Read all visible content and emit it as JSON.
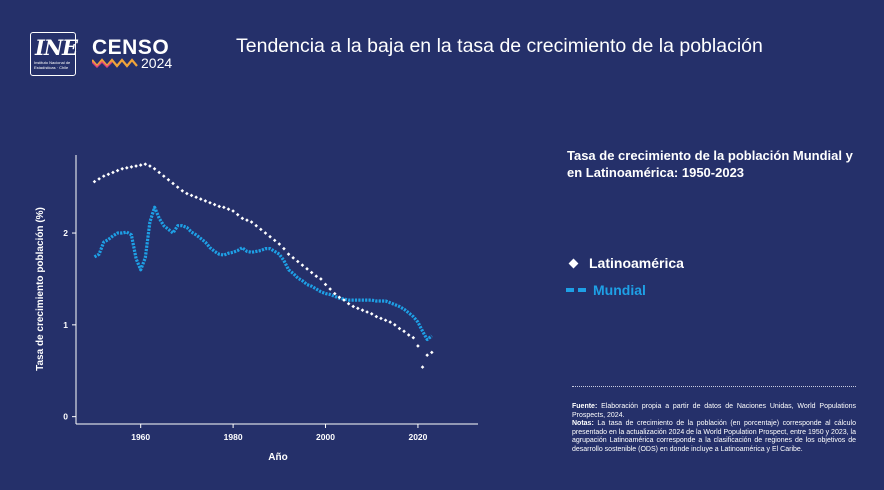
{
  "header": {
    "ine_logo_text": "INE",
    "ine_subtext": "Instituto Nacional de Estadísticas · Chile",
    "censo_text": "CENSO",
    "censo_year": "2024",
    "title": "Tendencia a la baja en la tasa de crecimiento de la población"
  },
  "colors": {
    "background": "#25306a",
    "latinoamerica": "#ffffff",
    "mundial": "#1ea0e6"
  },
  "chart_data": {
    "type": "line",
    "title": "Tasa de crecimiento de la población Mundial y en Latinoamérica: 1950-2023",
    "xlabel": "Año",
    "ylabel": "Tasa de crecimiento población (%)",
    "xlim": [
      1946,
      2033
    ],
    "ylim": [
      -0.08,
      2.85
    ],
    "x_ticks": [
      1960,
      1980,
      2000,
      2020
    ],
    "y_ticks": [
      0,
      1,
      2
    ],
    "grid": false,
    "legend_position": "right",
    "x": [
      1950,
      1951,
      1952,
      1953,
      1954,
      1955,
      1956,
      1957,
      1958,
      1959,
      1960,
      1961,
      1962,
      1963,
      1964,
      1965,
      1966,
      1967,
      1968,
      1969,
      1970,
      1971,
      1972,
      1973,
      1974,
      1975,
      1976,
      1977,
      1978,
      1979,
      1980,
      1981,
      1982,
      1983,
      1984,
      1985,
      1986,
      1987,
      1988,
      1989,
      1990,
      1991,
      1992,
      1993,
      1994,
      1995,
      1996,
      1997,
      1998,
      1999,
      2000,
      2001,
      2002,
      2003,
      2004,
      2005,
      2006,
      2007,
      2008,
      2009,
      2010,
      2011,
      2012,
      2013,
      2014,
      2015,
      2016,
      2017,
      2018,
      2019,
      2020,
      2021,
      2022,
      2023
    ],
    "series": [
      {
        "name": "Latinoamérica",
        "style": "diamond-dotted",
        "values": [
          2.56,
          2.59,
          2.62,
          2.64,
          2.66,
          2.68,
          2.7,
          2.71,
          2.72,
          2.73,
          2.74,
          2.75,
          2.73,
          2.7,
          2.66,
          2.62,
          2.58,
          2.54,
          2.5,
          2.46,
          2.43,
          2.41,
          2.39,
          2.37,
          2.35,
          2.33,
          2.31,
          2.29,
          2.28,
          2.26,
          2.24,
          2.2,
          2.16,
          2.14,
          2.12,
          2.08,
          2.04,
          2.0,
          1.96,
          1.92,
          1.88,
          1.83,
          1.77,
          1.73,
          1.69,
          1.65,
          1.61,
          1.57,
          1.53,
          1.5,
          1.44,
          1.39,
          1.34,
          1.3,
          1.27,
          1.23,
          1.2,
          1.18,
          1.16,
          1.14,
          1.12,
          1.09,
          1.07,
          1.05,
          1.03,
          1.0,
          0.96,
          0.93,
          0.89,
          0.86,
          0.77,
          0.54,
          0.67,
          0.7
        ]
      },
      {
        "name": "Mundial",
        "style": "dashed",
        "values": [
          1.74,
          1.77,
          1.9,
          1.93,
          1.97,
          2.0,
          2.0,
          2.01,
          1.98,
          1.72,
          1.6,
          1.73,
          2.12,
          2.28,
          2.16,
          2.08,
          2.04,
          2.0,
          2.08,
          2.08,
          2.06,
          2.01,
          1.98,
          1.94,
          1.9,
          1.84,
          1.8,
          1.77,
          1.76,
          1.78,
          1.79,
          1.81,
          1.84,
          1.8,
          1.79,
          1.8,
          1.81,
          1.83,
          1.83,
          1.8,
          1.77,
          1.7,
          1.6,
          1.56,
          1.51,
          1.48,
          1.44,
          1.42,
          1.39,
          1.36,
          1.34,
          1.33,
          1.31,
          1.29,
          1.28,
          1.27,
          1.27,
          1.27,
          1.27,
          1.27,
          1.27,
          1.26,
          1.26,
          1.26,
          1.24,
          1.22,
          1.2,
          1.17,
          1.13,
          1.09,
          1.03,
          0.93,
          0.84,
          0.88
        ]
      }
    ]
  },
  "notes": {
    "fuente_label": "Fuente:",
    "fuente_text": "Elaboración propia a partir de datos de Naciones Unidas, World Populations Prospects, 2024.",
    "notas_label": "Notas:",
    "notas_text": "La tasa de crecimiento de la población (en porcentaje) corresponde al cálculo presentado en la actualización 2024 de la World Population Prospect, entre 1950 y 2023, la agrupación Latinoamérica corresponde a la clasificación de regiones de los objetivos de desarrollo sostenible (ODS) en donde incluye a Latinoamérica y El Caribe."
  }
}
